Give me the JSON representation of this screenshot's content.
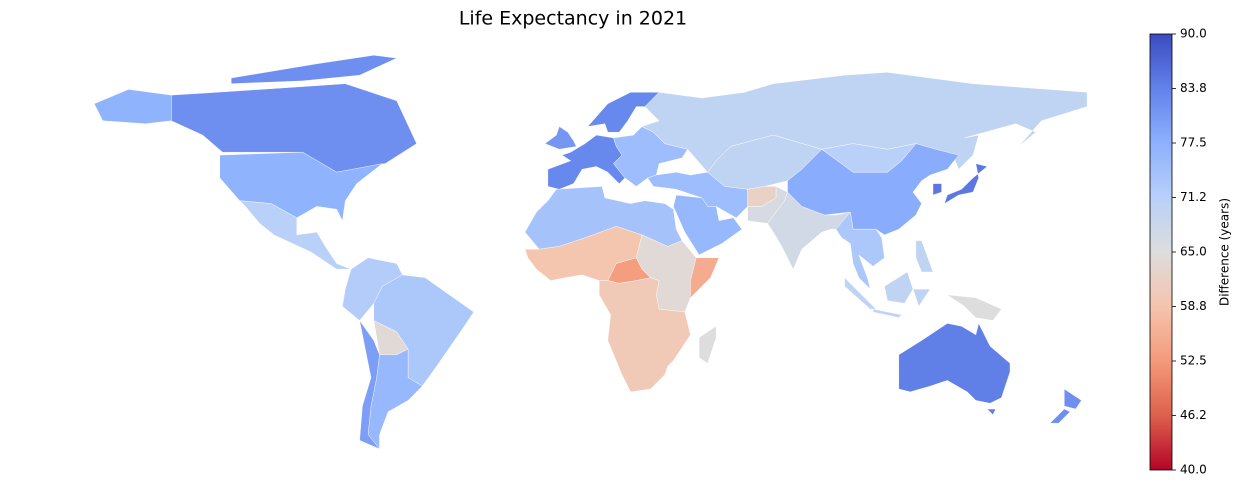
{
  "chart_data": {
    "type": "choropleth",
    "title": "Life Expectancy in 2021",
    "colorbar_label": "Difference (years)",
    "colormap": "coolwarm",
    "clim": [
      40,
      90
    ],
    "cticks": [
      {
        "value": 40,
        "label": "40.0"
      },
      {
        "value": 46.25,
        "label": "46.2"
      },
      52.5,
      {
        "value": 58.75,
        "label": "58.8"
      },
      {
        "value": 65,
        "label": "65.0"
      },
      {
        "value": 71.25,
        "label": "71.2"
      },
      77.5,
      {
        "value": 83.75,
        "label": "83.8"
      },
      {
        "value": 90,
        "label": "90.0"
      }
    ],
    "values": [
      82,
      77,
      71,
      72,
      73,
      64,
      76,
      80,
      83,
      81,
      83,
      75,
      70,
      70,
      75,
      76,
      62,
      66,
      67,
      78,
      71,
      73,
      85,
      70,
      65,
      84,
      82,
      74,
      59,
      53,
      64,
      55,
      60,
      65
    ]
  }
}
